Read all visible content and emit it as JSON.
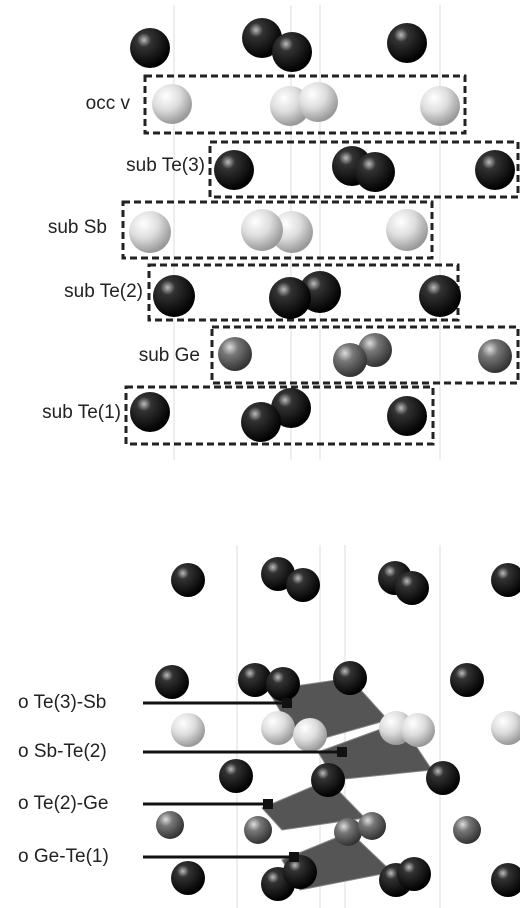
{
  "top_panel": {
    "rows": [
      "occ v",
      "sub Te(3)",
      "sub Sb",
      "sub Te(2)",
      "sub Ge",
      "sub Te(1)"
    ]
  },
  "bottom_panel": {
    "labels": [
      "o Te(3)-Sb",
      "o Sb-Te(2)",
      "o Te(2)-Ge",
      "o Ge-Te(1)"
    ]
  }
}
